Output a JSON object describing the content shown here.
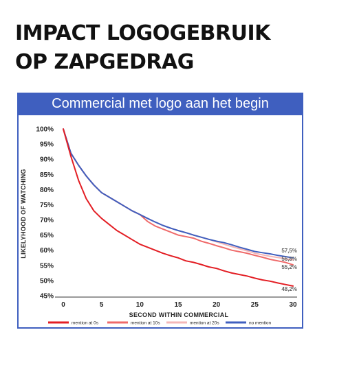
{
  "headline": {
    "line1": "IMPACT LOGOGEBRUIK",
    "line2": "OP ZAPGEDRAG"
  },
  "chart_data": {
    "type": "line",
    "title": "Commercial met logo aan het begin",
    "xlabel": "SECOND WITHIN COMMERCIAL",
    "ylabel": "LIKELYHOOD OF WATCHING",
    "xlim": [
      0,
      30
    ],
    "ylim": [
      45,
      100
    ],
    "xticks": [
      0,
      5,
      10,
      15,
      20,
      25,
      30
    ],
    "yticks": [
      "100%",
      "95%",
      "90%",
      "85%",
      "80%",
      "75%",
      "70%",
      "65%",
      "60%",
      "55%",
      "50%",
      "45%"
    ],
    "yticks_values": [
      100,
      95,
      90,
      85,
      80,
      75,
      70,
      65,
      60,
      55,
      50,
      45
    ],
    "grid": false,
    "legend_position": "bottom",
    "x": [
      0,
      1,
      2,
      3,
      4,
      5,
      6,
      7,
      8,
      9,
      10,
      11,
      12,
      13,
      14,
      15,
      16,
      17,
      18,
      19,
      20,
      21,
      22,
      23,
      24,
      25,
      26,
      27,
      28,
      29,
      30
    ],
    "series": [
      {
        "name": "mention at 0s",
        "color": "#e31e24",
        "end_label": "48,2%",
        "values": [
          100,
          91,
          83,
          77,
          73,
          70.5,
          68.5,
          66.5,
          65,
          63.5,
          62,
          61,
          60,
          59,
          58.2,
          57.5,
          56.5,
          56,
          55.3,
          54.5,
          54,
          53.2,
          52.5,
          52,
          51.5,
          50.8,
          50.2,
          49.8,
          49.2,
          48.7,
          48.2
        ]
      },
      {
        "name": "mention at 10s",
        "color": "#ef6a6a",
        "end_label": "55,2%",
        "values": [
          100,
          92,
          88,
          84.5,
          81.5,
          79,
          77.5,
          76,
          74.5,
          73,
          71.8,
          69.5,
          68,
          67,
          66,
          65,
          64.5,
          64,
          63,
          62.3,
          61.5,
          60.8,
          60,
          59.5,
          59,
          58.3,
          57.7,
          57,
          56.5,
          56,
          55.2
        ]
      },
      {
        "name": "mention at 20s",
        "color": "#f4b7b7",
        "end_label": "56,8%",
        "values": [
          100,
          92,
          88,
          84.5,
          81.5,
          79,
          77.5,
          76,
          74.5,
          73,
          71.8,
          70.5,
          69.3,
          68.2,
          67.3,
          66.5,
          65.8,
          65,
          64.3,
          63.6,
          62.8,
          62,
          61.2,
          60.5,
          59.8,
          59,
          58.5,
          58,
          57.6,
          57.2,
          56.8
        ]
      },
      {
        "name": "no mention",
        "color": "#3f5fbf",
        "end_label": "57,5%",
        "values": [
          100,
          92,
          88,
          84.5,
          81.5,
          79,
          77.5,
          76,
          74.5,
          73,
          71.8,
          70.5,
          69.3,
          68.2,
          67.3,
          66.5,
          65.8,
          65,
          64.3,
          63.6,
          63,
          62.5,
          61.8,
          61,
          60.3,
          59.6,
          59.2,
          58.8,
          58.3,
          57.9,
          57.5
        ]
      }
    ]
  }
}
